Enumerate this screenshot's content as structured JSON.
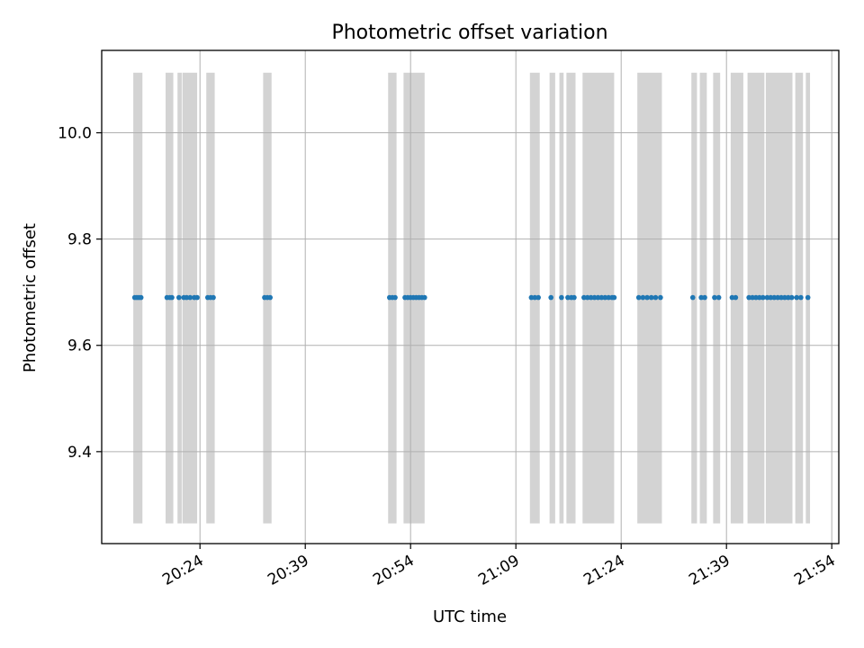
{
  "chart_data": {
    "type": "scatter",
    "title": "Photometric offset variation",
    "xlabel": "UTC time",
    "ylabel": "Photometric offset",
    "x_tick_labels": [
      "20:24",
      "20:39",
      "20:54",
      "21:09",
      "21:24",
      "21:39",
      "21:54"
    ],
    "x_tick_minutes": [
      1224,
      1239,
      1254,
      1269,
      1284,
      1299,
      1314
    ],
    "y_ticks": [
      9.4,
      9.6,
      9.8,
      10.0
    ],
    "y_tick_labels": [
      "9.4",
      "9.6",
      "9.8",
      "10.0"
    ],
    "xlim": [
      "20:10",
      "21:55"
    ],
    "ylim": [
      9.227,
      10.155
    ],
    "grid": true,
    "shaded_intervals": [
      {
        "start": "20:14.5",
        "end": "20:15.8"
      },
      {
        "start": "20:19.1",
        "end": "20:20.2"
      },
      {
        "start": "20:20.8",
        "end": "20:21.4"
      },
      {
        "start": "20:21.5",
        "end": "20:23.6"
      },
      {
        "start": "20:24.9",
        "end": "20:26.1"
      },
      {
        "start": "20:33.0",
        "end": "20:34.2"
      },
      {
        "start": "20:50.8",
        "end": "20:52.0"
      },
      {
        "start": "20:53.0",
        "end": "20:56.0"
      },
      {
        "start": "21:11.0",
        "end": "21:12.4"
      },
      {
        "start": "21:13.8",
        "end": "21:14.6"
      },
      {
        "start": "21:15.2",
        "end": "21:15.8"
      },
      {
        "start": "21:16.2",
        "end": "21:17.5"
      },
      {
        "start": "21:18.5",
        "end": "21:23.0"
      },
      {
        "start": "21:26.3",
        "end": "21:29.8"
      },
      {
        "start": "21:34.0",
        "end": "21:34.8"
      },
      {
        "start": "21:35.2",
        "end": "21:36.2"
      },
      {
        "start": "21:37.1",
        "end": "21:38.1"
      },
      {
        "start": "21:39.6",
        "end": "21:41.4"
      },
      {
        "start": "21:42.0",
        "end": "21:44.4"
      },
      {
        "start": "21:44.6",
        "end": "21:48.4"
      },
      {
        "start": "21:48.8",
        "end": "21:49.9"
      },
      {
        "start": "21:50.3",
        "end": "21:50.9"
      }
    ],
    "series": [
      {
        "color": "#1f77b4",
        "x": [
          "20:14.7",
          "20:15.0",
          "20:15.3",
          "20:15.6",
          "20:19.3",
          "20:19.7",
          "20:20.0",
          "20:21.0",
          "20:21.7",
          "20:22.1",
          "20:22.6",
          "20:23.2",
          "20:23.6",
          "20:25.1",
          "20:25.5",
          "20:25.9",
          "20:33.2",
          "20:33.6",
          "20:34.0",
          "20:51.0",
          "20:51.4",
          "20:51.8",
          "20:53.2",
          "20:53.6",
          "20:54.0",
          "20:54.4",
          "20:54.8",
          "20:55.2",
          "20:55.6",
          "20:56.0",
          "21:11.2",
          "21:11.7",
          "21:12.2",
          "21:14.0",
          "21:15.5",
          "21:16.4",
          "21:16.9",
          "21:17.3",
          "21:18.7",
          "21:19.2",
          "21:19.7",
          "21:20.2",
          "21:20.7",
          "21:21.2",
          "21:21.7",
          "21:22.2",
          "21:22.7",
          "21:23.0",
          "21:26.5",
          "21:27.1",
          "21:27.7",
          "21:28.3",
          "21:28.9",
          "21:29.6",
          "21:34.2",
          "21:35.4",
          "21:35.9",
          "21:37.3",
          "21:37.9",
          "21:39.8",
          "21:40.3",
          "21:42.2",
          "21:42.7",
          "21:43.2",
          "21:43.7",
          "21:44.2",
          "21:44.8",
          "21:45.3",
          "21:45.8",
          "21:46.3",
          "21:46.8",
          "21:47.3",
          "21:47.8",
          "21:48.3",
          "21:49.0",
          "21:49.6",
          "21:50.6"
        ],
        "y": 9.69
      }
    ]
  }
}
